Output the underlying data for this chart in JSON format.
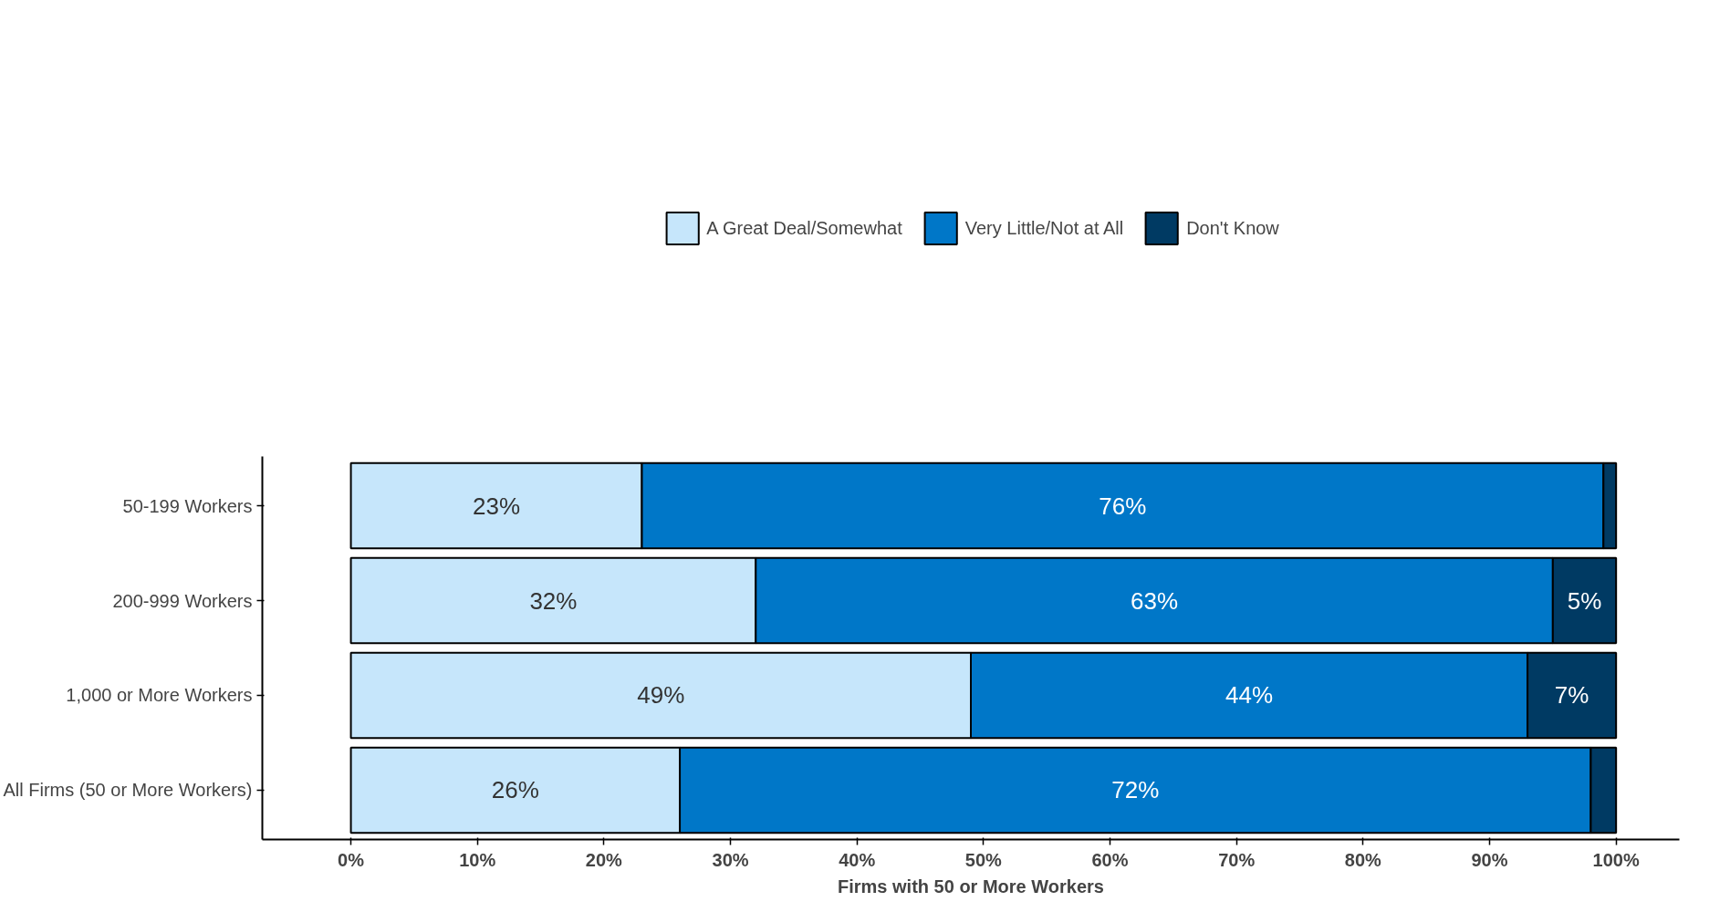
{
  "chart_data": {
    "type": "bar",
    "orientation": "horizontal",
    "stacked": true,
    "xlabel": "Firms with 50 or More Workers",
    "categories": [
      "50-199 Workers",
      "200-999 Workers",
      "1,000 or More Workers",
      "All Firms (50 or More Workers)"
    ],
    "series": [
      {
        "name": "A Great Deal/Somewhat",
        "color": "#c6e6fb",
        "values": [
          23,
          32,
          49,
          26
        ],
        "value_labels": [
          "23%",
          "32%",
          "49%",
          "26%"
        ]
      },
      {
        "name": "Very Little/Not at All",
        "color": "#0077c8",
        "values": [
          76,
          63,
          44,
          72
        ],
        "value_labels": [
          "76%",
          "63%",
          "44%",
          "72%"
        ]
      },
      {
        "name": "Don't Know",
        "color": "#003a63",
        "values": [
          1,
          5,
          7,
          2
        ],
        "value_labels": [
          null,
          "5%",
          "7%",
          null
        ]
      }
    ],
    "xlim": [
      -7,
      105
    ],
    "xticks": [
      {
        "value": 0,
        "label": "0%"
      },
      {
        "value": 10,
        "label": "10%"
      },
      {
        "value": 20,
        "label": "20%"
      },
      {
        "value": 30,
        "label": "30%"
      },
      {
        "value": 40,
        "label": "40%"
      },
      {
        "value": 50,
        "label": "50%"
      },
      {
        "value": 60,
        "label": "60%"
      },
      {
        "value": 70,
        "label": "70%"
      },
      {
        "value": 80,
        "label": "80%"
      },
      {
        "value": 90,
        "label": "90%"
      },
      {
        "value": 100,
        "label": "100%"
      }
    ],
    "grid": false,
    "legend": "top"
  }
}
